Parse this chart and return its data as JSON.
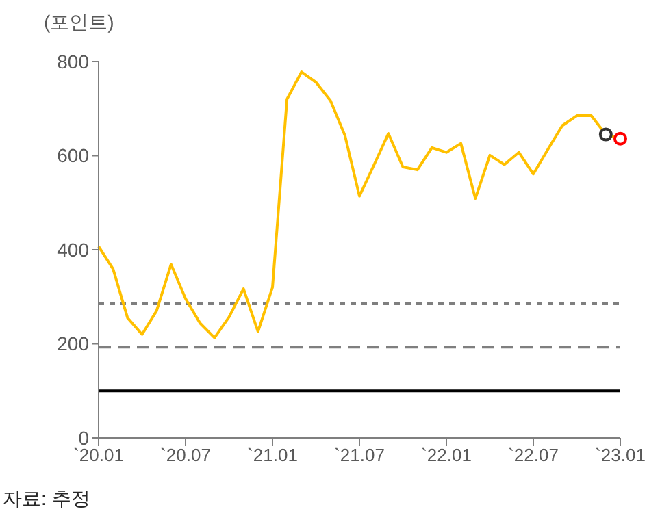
{
  "chart_data": {
    "type": "line",
    "ylabel": "(포인트)",
    "annotations": [
      "자료: 추정"
    ],
    "x": [
      "2020-01",
      "2020-02",
      "2020-03",
      "2020-04",
      "2020-05",
      "2020-06",
      "2020-07",
      "2020-08",
      "2020-09",
      "2020-10",
      "2020-11",
      "2020-12",
      "2021-01",
      "2021-02",
      "2021-03",
      "2021-04",
      "2021-05",
      "2021-06",
      "2021-07",
      "2021-08",
      "2021-09",
      "2021-10",
      "2021-11",
      "2021-12",
      "2022-01",
      "2022-02",
      "2022-03",
      "2022-04",
      "2022-05",
      "2022-06",
      "2022-07",
      "2022-08",
      "2022-09",
      "2022-10",
      "2022-11",
      "2022-12",
      "2023-01"
    ],
    "series": [
      {
        "color": "#ffc000",
        "marker": "none",
        "values": [
          407,
          359,
          255,
          220,
          270,
          369,
          296,
          244,
          213,
          257,
          317,
          226,
          320,
          720,
          778,
          756,
          717,
          643,
          514,
          580,
          647,
          576,
          570,
          617,
          607,
          626,
          509,
          601,
          581,
          607,
          561,
          613,
          664,
          685,
          685,
          645,
          636
        ]
      },
      {
        "type": "scatter",
        "color": "#333333",
        "marker": "circle",
        "x": [
          "2022-12"
        ],
        "values": [
          645
        ]
      },
      {
        "type": "scatter",
        "color": "#ff0000",
        "marker": "circle",
        "x": [
          "2023-01"
        ],
        "values": [
          636
        ]
      }
    ],
    "xlim": [
      "2020-01",
      "2023-01"
    ],
    "xticks": [
      {
        "value": "2020-01",
        "label": "`20.01"
      },
      {
        "value": "2020-07",
        "label": "`20.07"
      },
      {
        "value": "2021-01",
        "label": "`21.01"
      },
      {
        "value": "2021-07",
        "label": "`21.07"
      },
      {
        "value": "2022-01",
        "label": "`22.01"
      },
      {
        "value": "2022-07",
        "label": "`22.07"
      },
      {
        "value": "2023-01",
        "label": "`23.01"
      }
    ],
    "ylim": [
      0,
      800
    ],
    "yticks": [
      0,
      200,
      400,
      600,
      800
    ],
    "ref_lines": [
      {
        "axis": "y",
        "value": 285,
        "color": "#7f7f7f",
        "line_style": "dotted"
      },
      {
        "axis": "y",
        "value": 193,
        "color": "#7f7f7f",
        "line_style": "dashed"
      },
      {
        "axis": "y",
        "value": 100,
        "color": "#000000",
        "line_style": "solid"
      }
    ],
    "grid": false,
    "legend": false
  }
}
